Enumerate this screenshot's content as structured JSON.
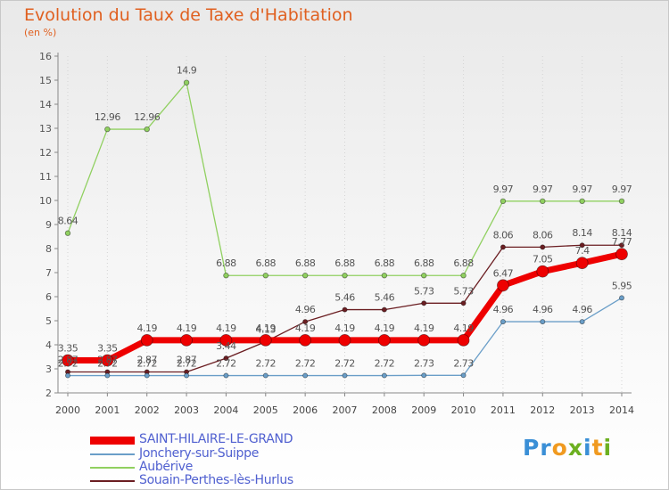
{
  "title": "Evolution du Taux de Taxe d'Habitation",
  "unit_label": "(en %)",
  "logo": {
    "letters": [
      "P",
      "r",
      "o",
      "x",
      "i",
      "t",
      "i"
    ],
    "colors": [
      "#3a8fd6",
      "#3a8fd6",
      "#f09a20",
      "#6cb020",
      "#3a8fd6",
      "#f09a20",
      "#6cb020"
    ]
  },
  "chart_data": {
    "type": "line",
    "title": "Evolution du Taux de Taxe d'Habitation",
    "ylabel": "(en %)",
    "xlabel": "",
    "x": [
      "2000",
      "2001",
      "2002",
      "2003",
      "2004",
      "2005",
      "2006",
      "2007",
      "2008",
      "2009",
      "2010",
      "2011",
      "2012",
      "2013",
      "2014"
    ],
    "yticks": [
      2,
      3,
      4,
      5,
      6,
      7,
      8,
      9,
      10,
      11,
      12,
      13,
      14,
      15,
      16
    ],
    "ylim": [
      2,
      16
    ],
    "grid": "vertical dotted",
    "legend_position": "bottom-left",
    "series": [
      {
        "name": "Souain-Perthes-lès-Hurlus",
        "color": "#6b1e22",
        "width": 1.3,
        "marker": 2.6,
        "values": [
          2.87,
          2.87,
          2.87,
          2.87,
          3.44,
          4.13,
          4.96,
          5.46,
          5.46,
          5.73,
          5.73,
          8.06,
          8.06,
          8.14,
          8.14
        ],
        "labels": [
          "2.87",
          "2.87",
          "2.87",
          "2.87",
          "3.44",
          "4.13",
          "4.96",
          "5.46",
          "5.46",
          "5.73",
          "5.73",
          "8.06",
          "8.06",
          "8.14",
          "8.14"
        ]
      },
      {
        "name": "Aubérive",
        "color": "#90d060",
        "width": 1.3,
        "marker": 2.8,
        "values": [
          8.64,
          12.96,
          12.96,
          14.9,
          6.88,
          6.88,
          6.88,
          6.88,
          6.88,
          6.88,
          6.88,
          9.97,
          9.97,
          9.97,
          9.97
        ],
        "labels": [
          "8.64",
          "12.96",
          "12.96",
          "14.9",
          "6.88",
          "6.88",
          "6.88",
          "6.88",
          "6.88",
          "6.88",
          "6.88",
          "9.97",
          "9.97",
          "9.97",
          "9.97"
        ]
      },
      {
        "name": "Jonchery-sur-Suippe",
        "color": "#6a9ec8",
        "width": 1.3,
        "marker": 2.6,
        "values": [
          2.72,
          2.72,
          2.72,
          2.72,
          2.72,
          2.72,
          2.72,
          2.72,
          2.72,
          2.73,
          2.73,
          4.96,
          4.96,
          4.96,
          5.95
        ],
        "labels": [
          "2.72",
          "2.72",
          "2.72",
          "2.72",
          "2.72",
          "2.72",
          "2.72",
          "2.72",
          "2.72",
          "2.73",
          "2.73",
          "4.96",
          "4.96",
          "4.96",
          "5.95"
        ]
      },
      {
        "name": "SAINT-HILAIRE-LE-GRAND",
        "color": "#ee0000",
        "width": 7,
        "marker": 6.5,
        "values": [
          3.35,
          3.35,
          4.19,
          4.19,
          4.19,
          4.19,
          4.19,
          4.19,
          4.19,
          4.19,
          4.19,
          6.47,
          7.05,
          7.4,
          7.77
        ],
        "labels": [
          "3.35",
          "3.35",
          "4.19",
          "4.19",
          "4.19",
          "4.19",
          "4.19",
          "4.19",
          "4.19",
          "4.19",
          "4.19",
          "6.47",
          "7.05",
          "7.4",
          "7.77"
        ]
      }
    ]
  },
  "legend": [
    {
      "name": "SAINT-HILAIRE-LE-GRAND",
      "color": "#ee0000",
      "thick": true
    },
    {
      "name": "Jonchery-sur-Suippe",
      "color": "#6a9ec8",
      "thick": false
    },
    {
      "name": "Aubérive",
      "color": "#90d060",
      "thick": false
    },
    {
      "name": "Souain-Perthes-lès-Hurlus",
      "color": "#6b1e22",
      "thick": false
    }
  ]
}
